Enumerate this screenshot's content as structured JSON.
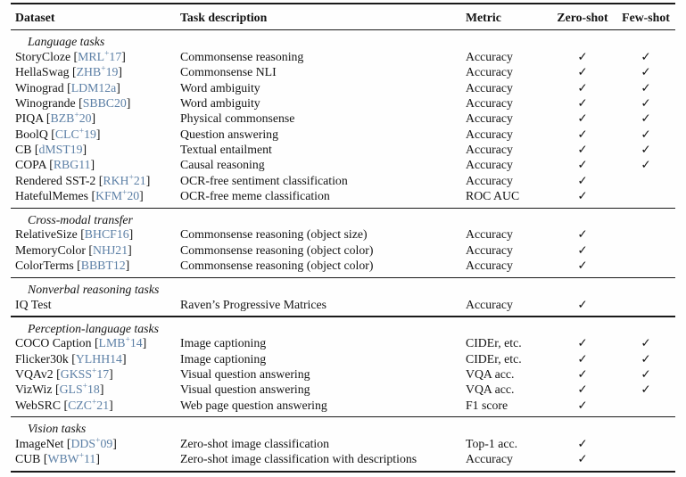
{
  "colors": {
    "text": "#141414",
    "citation": "#5d80a6",
    "rule": "#1a1a1a",
    "background": "#ffffff"
  },
  "glyphs": {
    "check": "✓",
    "bracket_open": "[",
    "bracket_close": "]",
    "space": " "
  },
  "table": {
    "columns": [
      "Dataset",
      "Task description",
      "Metric",
      "Zero-shot",
      "Few-shot"
    ],
    "sections": [
      {
        "label": "Language tasks",
        "rows": [
          {
            "dataset": "StoryCloze",
            "cite": {
              "pre": "MRL",
              "sup": "+",
              "post": "17"
            },
            "task": "Commonsense reasoning",
            "metric": "Accuracy",
            "zero_shot": true,
            "few_shot": true
          },
          {
            "dataset": "HellaSwag",
            "cite": {
              "pre": "ZHB",
              "sup": "+",
              "post": "19"
            },
            "task": "Commonsense NLI",
            "metric": "Accuracy",
            "zero_shot": true,
            "few_shot": true
          },
          {
            "dataset": "Winograd",
            "cite": {
              "pre": "LDM12a",
              "sup": "",
              "post": ""
            },
            "task": "Word ambiguity",
            "metric": "Accuracy",
            "zero_shot": true,
            "few_shot": true
          },
          {
            "dataset": "Winogrande",
            "cite": {
              "pre": "SBBC20",
              "sup": "",
              "post": ""
            },
            "task": "Word ambiguity",
            "metric": "Accuracy",
            "zero_shot": true,
            "few_shot": true
          },
          {
            "dataset": "PIQA",
            "cite": {
              "pre": "BZB",
              "sup": "+",
              "post": "20"
            },
            "task": "Physical commonsense",
            "metric": "Accuracy",
            "zero_shot": true,
            "few_shot": true
          },
          {
            "dataset": "BoolQ",
            "cite": {
              "pre": "CLC",
              "sup": "+",
              "post": "19"
            },
            "task": "Question answering",
            "metric": "Accuracy",
            "zero_shot": true,
            "few_shot": true
          },
          {
            "dataset": "CB",
            "cite": {
              "pre": "dMST19",
              "sup": "",
              "post": ""
            },
            "task": "Textual entailment",
            "metric": "Accuracy",
            "zero_shot": true,
            "few_shot": true
          },
          {
            "dataset": "COPA",
            "cite": {
              "pre": "RBG11",
              "sup": "",
              "post": ""
            },
            "task": "Causal reasoning",
            "metric": "Accuracy",
            "zero_shot": true,
            "few_shot": true
          },
          {
            "dataset": "Rendered SST-2",
            "cite": {
              "pre": "RKH",
              "sup": "+",
              "post": "21"
            },
            "task": "OCR-free sentiment classification",
            "metric": "Accuracy",
            "zero_shot": true,
            "few_shot": false
          },
          {
            "dataset": "HatefulMemes",
            "cite": {
              "pre": "KFM",
              "sup": "+",
              "post": "20"
            },
            "task": "OCR-free meme classification",
            "metric": "ROC AUC",
            "zero_shot": true,
            "few_shot": false
          }
        ]
      },
      {
        "label": "Cross-modal transfer",
        "rows": [
          {
            "dataset": "RelativeSize",
            "cite": {
              "pre": "BHCF16",
              "sup": "",
              "post": ""
            },
            "task": "Commonsense reasoning (object size)",
            "metric": "Accuracy",
            "zero_shot": true,
            "few_shot": false
          },
          {
            "dataset": "MemoryColor",
            "cite": {
              "pre": "NHJ21",
              "sup": "",
              "post": ""
            },
            "task": "Commonsense reasoning (object color)",
            "metric": "Accuracy",
            "zero_shot": true,
            "few_shot": false
          },
          {
            "dataset": "ColorTerms",
            "cite": {
              "pre": "BBBT12",
              "sup": "",
              "post": ""
            },
            "task": "Commonsense reasoning (object color)",
            "metric": "Accuracy",
            "zero_shot": true,
            "few_shot": false
          }
        ]
      },
      {
        "label": "Nonverbal reasoning tasks",
        "rows": [
          {
            "dataset": "IQ Test",
            "cite": null,
            "task": "Raven’s Progressive Matrices",
            "metric": "Accuracy",
            "zero_shot": true,
            "few_shot": false
          }
        ]
      },
      {
        "label": "Perception-language tasks",
        "rows": [
          {
            "dataset": "COCO Caption",
            "cite": {
              "pre": "LMB",
              "sup": "+",
              "post": "14"
            },
            "task": "Image captioning",
            "metric": "CIDEr, etc.",
            "zero_shot": true,
            "few_shot": true
          },
          {
            "dataset": "Flicker30k",
            "cite": {
              "pre": "YLHH14",
              "sup": "",
              "post": ""
            },
            "task": "Image captioning",
            "metric": "CIDEr, etc.",
            "zero_shot": true,
            "few_shot": true
          },
          {
            "dataset": "VQAv2",
            "cite": {
              "pre": "GKSS",
              "sup": "+",
              "post": "17"
            },
            "task": "Visual question answering",
            "metric": "VQA acc.",
            "zero_shot": true,
            "few_shot": true
          },
          {
            "dataset": "VizWiz",
            "cite": {
              "pre": "GLS",
              "sup": "+",
              "post": "18"
            },
            "task": "Visual question answering",
            "metric": "VQA acc.",
            "zero_shot": true,
            "few_shot": true
          },
          {
            "dataset": "WebSRC",
            "cite": {
              "pre": "CZC",
              "sup": "+",
              "post": "21"
            },
            "task": "Web page question answering",
            "metric": "F1 score",
            "zero_shot": true,
            "few_shot": false
          }
        ]
      },
      {
        "label": "Vision tasks",
        "rows": [
          {
            "dataset": "ImageNet",
            "cite": {
              "pre": "DDS",
              "sup": "+",
              "post": "09"
            },
            "task": "Zero-shot image classification",
            "metric": "Top-1 acc.",
            "zero_shot": true,
            "few_shot": false
          },
          {
            "dataset": "CUB",
            "cite": {
              "pre": "WBW",
              "sup": "+",
              "post": "11"
            },
            "task": "Zero-shot image classification with descriptions",
            "metric": "Accuracy",
            "zero_shot": true,
            "few_shot": false
          }
        ]
      }
    ]
  }
}
